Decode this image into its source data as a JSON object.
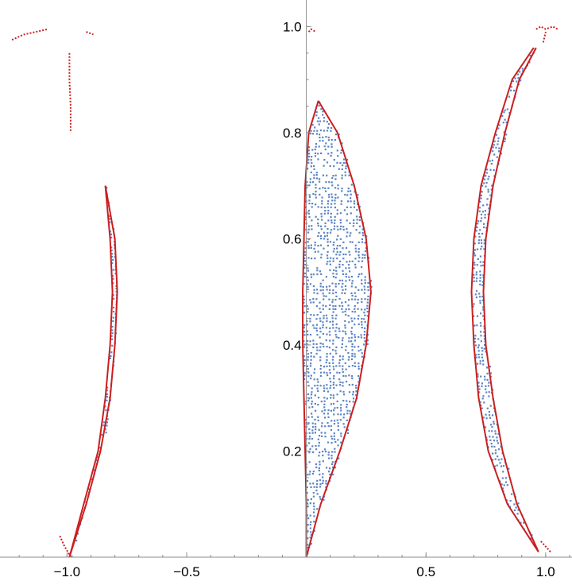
{
  "chart_data": {
    "type": "scatter",
    "title": "",
    "xlabel": "",
    "ylabel": "",
    "xlim": [
      -1.28,
      1.11
    ],
    "ylim": [
      0,
      1.05
    ],
    "grid": false,
    "legend": "none",
    "x_ticks": [
      {
        "value": -1.0,
        "label": "−1.0"
      },
      {
        "value": -0.5,
        "label": "−0.5"
      },
      {
        "value": 0.5,
        "label": "0.5"
      },
      {
        "value": 1.0,
        "label": "1.0"
      }
    ],
    "y_ticks": [
      {
        "value": 0.2,
        "label": "0.2"
      },
      {
        "value": 0.4,
        "label": "0.4"
      },
      {
        "value": 0.6,
        "label": "0.6"
      },
      {
        "value": 0.8,
        "label": "0.8"
      },
      {
        "value": 1.0,
        "label": "1.0"
      }
    ],
    "colors": {
      "fill_points": "#5b84c4",
      "boundary": "#cc1f1f",
      "axis": "#8c8c8c"
    },
    "regions": [
      {
        "color": "#5b84c4",
        "style": "filled-points",
        "left": [
          [
            0.0,
            0.0
          ],
          [
            0.0,
            0.1
          ],
          [
            -0.005,
            0.2
          ],
          [
            -0.01,
            0.3
          ],
          [
            -0.015,
            0.4
          ],
          [
            -0.015,
            0.5
          ],
          [
            -0.01,
            0.6
          ],
          [
            -0.005,
            0.7
          ],
          [
            0.01,
            0.8
          ],
          [
            0.05,
            0.86
          ]
        ],
        "right": [
          [
            0.0,
            0.0
          ],
          [
            0.06,
            0.1
          ],
          [
            0.14,
            0.2
          ],
          [
            0.21,
            0.3
          ],
          [
            0.25,
            0.4
          ],
          [
            0.27,
            0.5
          ],
          [
            0.25,
            0.6
          ],
          [
            0.2,
            0.7
          ],
          [
            0.13,
            0.8
          ],
          [
            0.05,
            0.86
          ]
        ]
      },
      {
        "color": "#5b84c4",
        "style": "filled-points",
        "left": [
          [
            0.97,
            0.01
          ],
          [
            0.84,
            0.1
          ],
          [
            0.76,
            0.2
          ],
          [
            0.72,
            0.3
          ],
          [
            0.7,
            0.4
          ],
          [
            0.69,
            0.5
          ],
          [
            0.7,
            0.6
          ],
          [
            0.73,
            0.7
          ],
          [
            0.79,
            0.8
          ],
          [
            0.86,
            0.9
          ],
          [
            0.95,
            0.96
          ]
        ],
        "right": [
          [
            0.97,
            0.01
          ],
          [
            0.88,
            0.1
          ],
          [
            0.82,
            0.2
          ],
          [
            0.78,
            0.3
          ],
          [
            0.75,
            0.4
          ],
          [
            0.74,
            0.5
          ],
          [
            0.75,
            0.6
          ],
          [
            0.78,
            0.7
          ],
          [
            0.83,
            0.8
          ],
          [
            0.89,
            0.9
          ],
          [
            0.96,
            0.96
          ]
        ]
      },
      {
        "color": "#5b84c4",
        "style": "filled-points",
        "left": [
          [
            -0.99,
            0.0
          ],
          [
            -0.93,
            0.1
          ],
          [
            -0.87,
            0.2
          ],
          [
            -0.84,
            0.3
          ],
          [
            -0.82,
            0.4
          ],
          [
            -0.81,
            0.5
          ],
          [
            -0.82,
            0.6
          ],
          [
            -0.84,
            0.7
          ]
        ],
        "right": [
          [
            -0.99,
            0.0
          ],
          [
            -0.92,
            0.1
          ],
          [
            -0.86,
            0.2
          ],
          [
            -0.82,
            0.3
          ],
          [
            -0.8,
            0.4
          ],
          [
            -0.79,
            0.5
          ],
          [
            -0.8,
            0.6
          ],
          [
            -0.84,
            0.7
          ]
        ]
      }
    ],
    "red_fragments": [
      [
        [
          -1.23,
          0.975
        ],
        [
          -1.18,
          0.985
        ],
        [
          -1.13,
          0.99
        ],
        [
          -1.08,
          0.995
        ]
      ],
      [
        [
          -0.92,
          0.99
        ],
        [
          -0.89,
          0.985
        ]
      ],
      [
        [
          -0.99,
          0.95
        ],
        [
          -0.99,
          0.9
        ],
        [
          -0.985,
          0.85
        ],
        [
          -0.985,
          0.8
        ]
      ],
      [
        [
          0.01,
          0.99
        ],
        [
          0.02,
          0.995
        ],
        [
          0.04,
          0.99
        ]
      ],
      [
        [
          0.96,
          0.995
        ],
        [
          0.98,
          1.0
        ],
        [
          1.0,
          0.995
        ],
        [
          1.03,
          1.0
        ],
        [
          1.05,
          0.995
        ]
      ],
      [
        [
          0.99,
          0.97
        ],
        [
          1.0,
          0.99
        ]
      ],
      [
        [
          -1.03,
          0.04
        ],
        [
          -1.01,
          0.02
        ],
        [
          -0.99,
          0.005
        ]
      ],
      [
        [
          0.98,
          0.03
        ],
        [
          1.0,
          0.02
        ],
        [
          1.02,
          0.01
        ]
      ]
    ]
  }
}
